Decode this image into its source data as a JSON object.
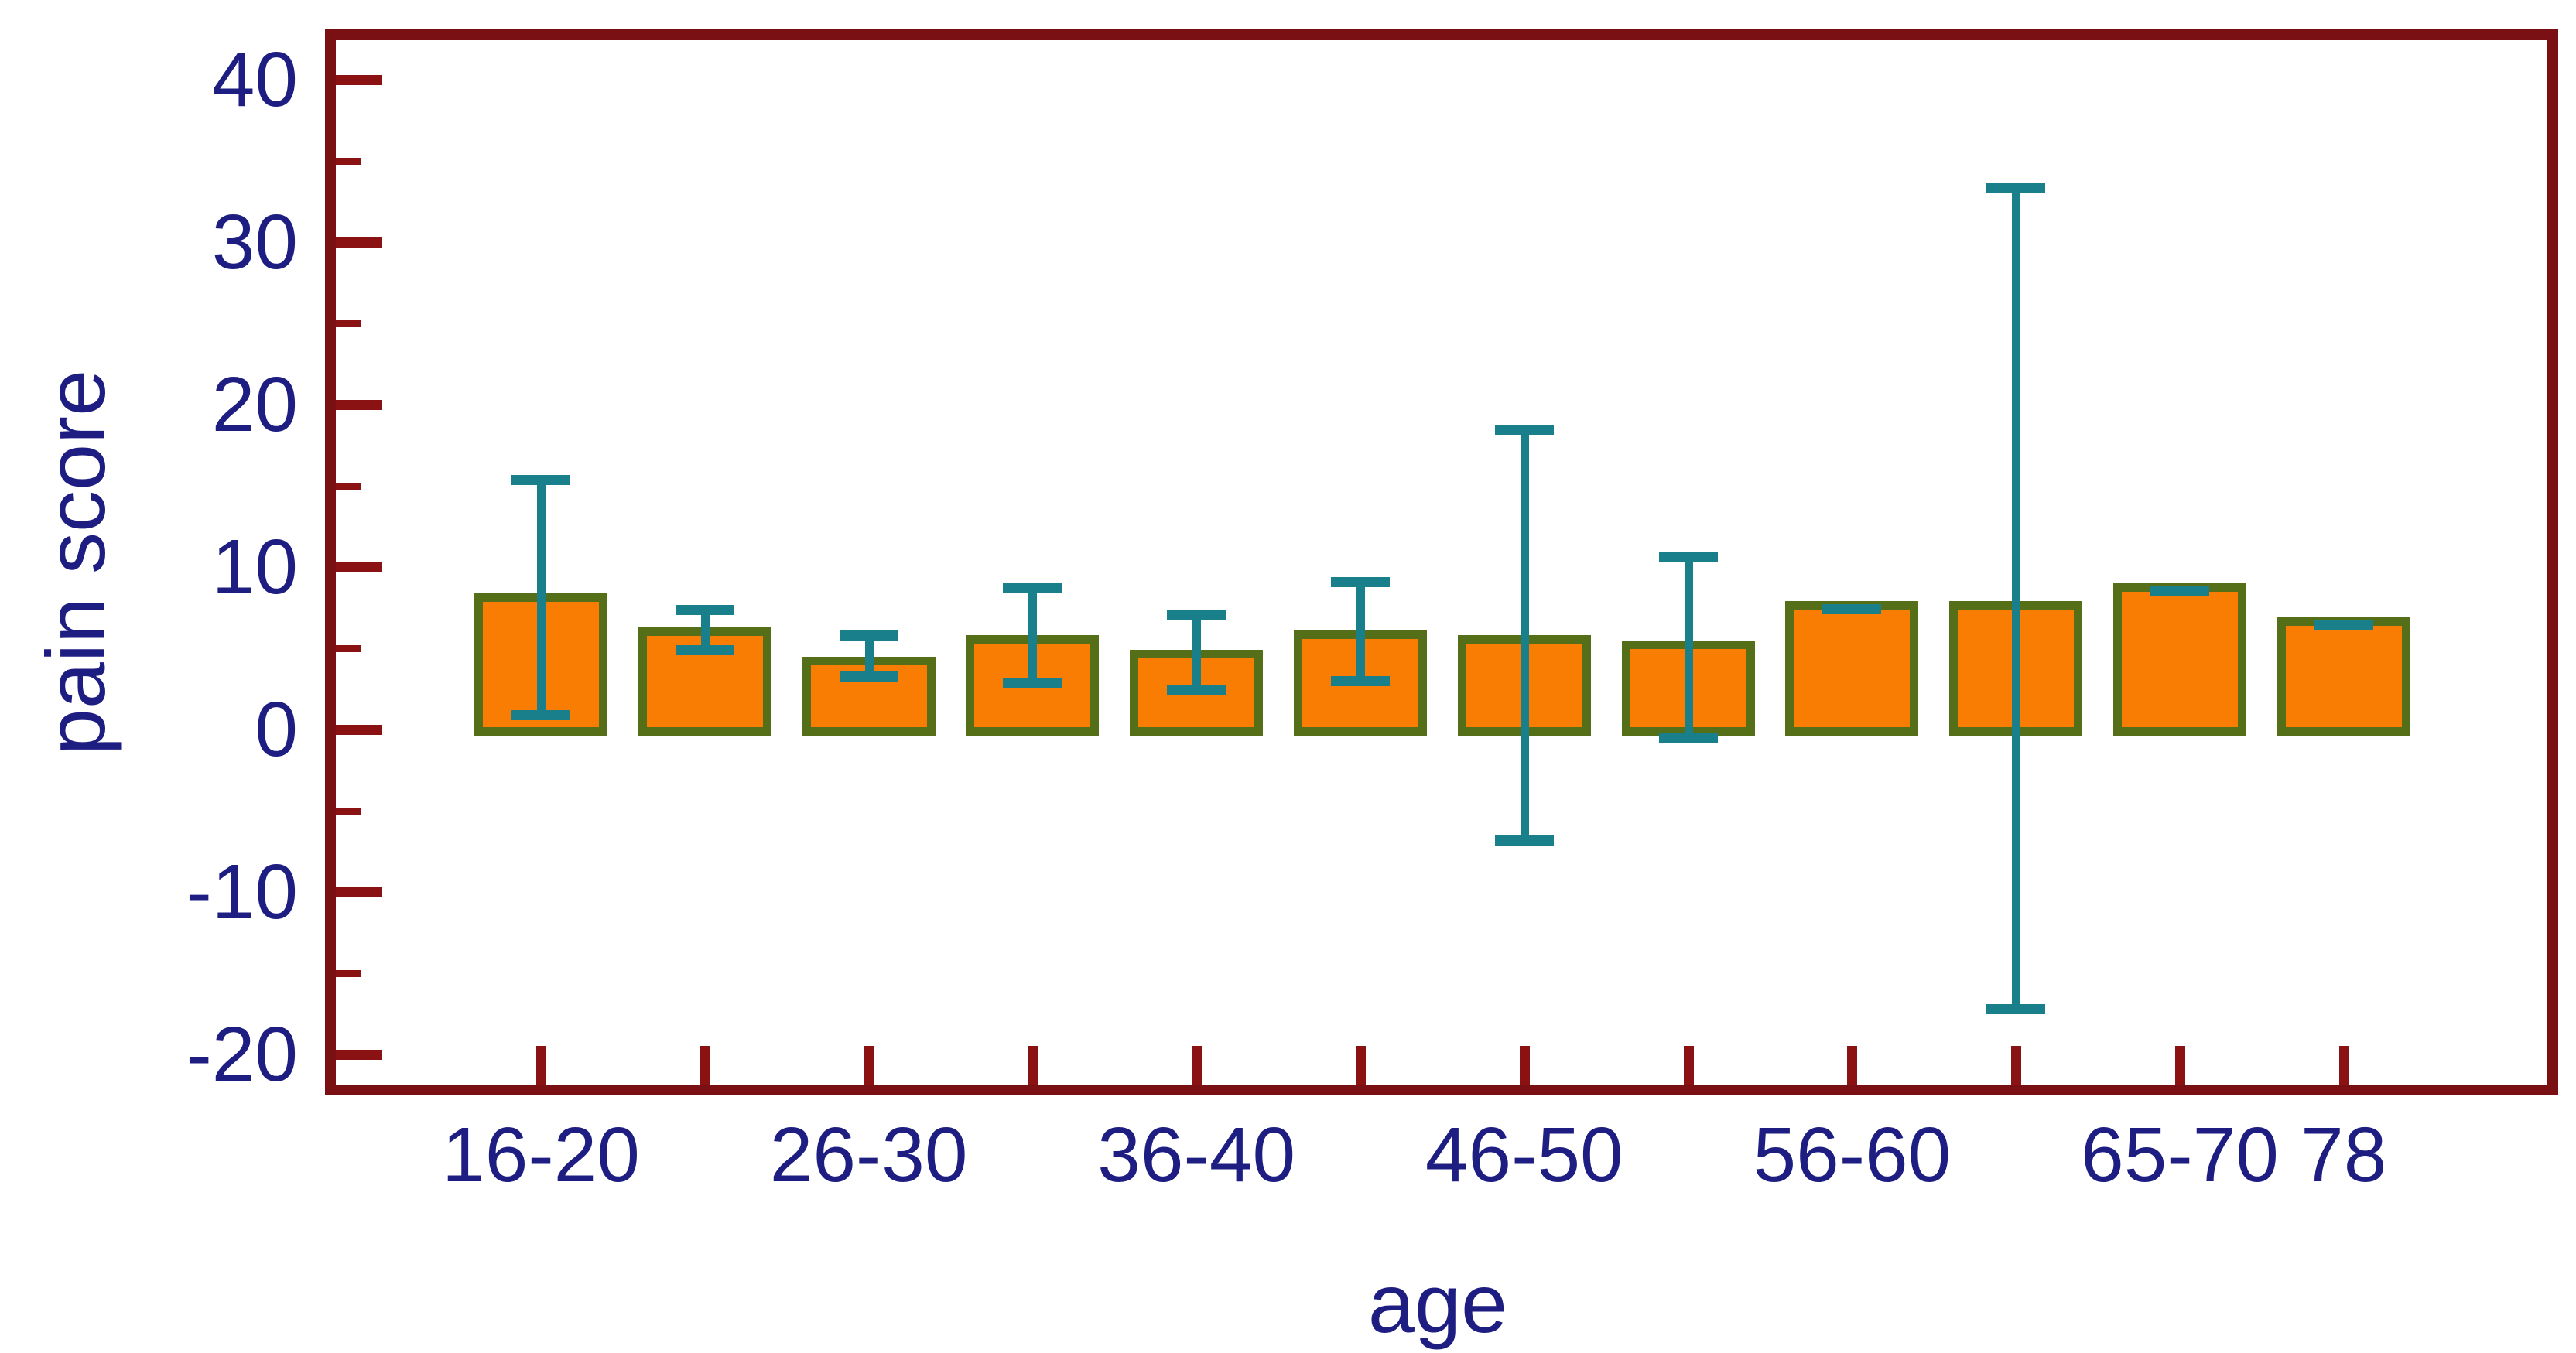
{
  "chart_data": {
    "type": "bar",
    "title": "",
    "xlabel": "age",
    "ylabel": "pain score",
    "ylim": [
      -22.5,
      43.0
    ],
    "yticks_major": [
      40,
      30,
      20,
      10,
      0,
      -10,
      -20
    ],
    "yticks_minor": [
      35,
      25,
      15,
      5,
      -5,
      -15
    ],
    "grid": false,
    "legend": false,
    "error_bars": true,
    "bars": [
      {
        "label": "16-20",
        "mean": 8.4,
        "err_low": 0.9,
        "err_high": 15.4
      },
      {
        "label": "",
        "mean": 6.3,
        "err_low": 4.9,
        "err_high": 7.4
      },
      {
        "label": "26-30",
        "mean": 4.5,
        "err_low": 3.3,
        "err_high": 5.8
      },
      {
        "label": "",
        "mean": 5.8,
        "err_low": 2.9,
        "err_high": 8.7
      },
      {
        "label": "36-40",
        "mean": 4.9,
        "err_low": 2.5,
        "err_high": 7.1
      },
      {
        "label": "",
        "mean": 6.1,
        "err_low": 3.0,
        "err_high": 9.1
      },
      {
        "label": "46-50",
        "mean": 5.8,
        "err_low": -6.8,
        "err_high": 18.5
      },
      {
        "label": "",
        "mean": 5.5,
        "err_low": -0.5,
        "err_high": 10.6
      },
      {
        "label": "56-60",
        "mean": 7.9,
        "err_low": 7.9,
        "err_high": 7.9
      },
      {
        "label": "",
        "mean": 7.9,
        "err_low": -17.2,
        "err_high": 33.4
      },
      {
        "label": "65-70",
        "mean": 9.0,
        "err_low": 9.0,
        "err_high": 9.0
      },
      {
        "label": "78",
        "mean": 6.9,
        "err_low": 6.9,
        "err_high": 6.9
      }
    ],
    "colors": {
      "background": "#ffffff",
      "frame": "#7a1014",
      "tick": "#8b1212",
      "text": "#1d1d82",
      "bar_fill": "#f97d02",
      "bar_border": "#546f17",
      "error_bar": "#187f8b"
    }
  }
}
